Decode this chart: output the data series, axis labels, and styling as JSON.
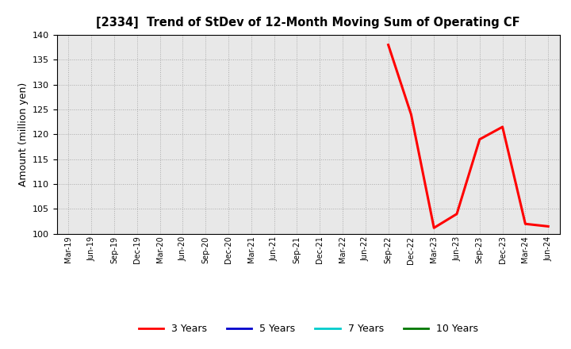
{
  "title": "[2334]  Trend of StDev of 12-Month Moving Sum of Operating CF",
  "ylabel": "Amount (million yen)",
  "background_color": "#ffffff",
  "plot_bg_color": "#e8e8e8",
  "grid_color": "#aaaaaa",
  "ylim": [
    100,
    140
  ],
  "yticks": [
    100,
    105,
    110,
    115,
    120,
    125,
    130,
    135,
    140
  ],
  "x_labels": [
    "Mar-19",
    "Jun-19",
    "Sep-19",
    "Dec-19",
    "Mar-20",
    "Jun-20",
    "Sep-20",
    "Dec-20",
    "Mar-21",
    "Jun-21",
    "Sep-21",
    "Dec-21",
    "Mar-22",
    "Jun-22",
    "Sep-22",
    "Dec-22",
    "Mar-23",
    "Jun-23",
    "Sep-23",
    "Dec-23",
    "Mar-24",
    "Jun-24"
  ],
  "series_3y": {
    "x_indices": [
      14,
      15,
      16,
      17,
      18,
      19,
      20,
      21
    ],
    "y_values": [
      138.0,
      124.0,
      101.2,
      104.0,
      119.0,
      121.5,
      102.0,
      101.5
    ],
    "color": "#ff0000",
    "linewidth": 2.2,
    "label": "3 Years"
  },
  "series_5y": {
    "color": "#0000cc",
    "label": "5 Years"
  },
  "series_7y": {
    "color": "#00cccc",
    "label": "7 Years"
  },
  "series_10y": {
    "color": "#007700",
    "label": "10 Years"
  },
  "legend_colors": [
    "#ff0000",
    "#0000cc",
    "#00cccc",
    "#007700"
  ],
  "legend_labels": [
    "3 Years",
    "5 Years",
    "7 Years",
    "10 Years"
  ]
}
